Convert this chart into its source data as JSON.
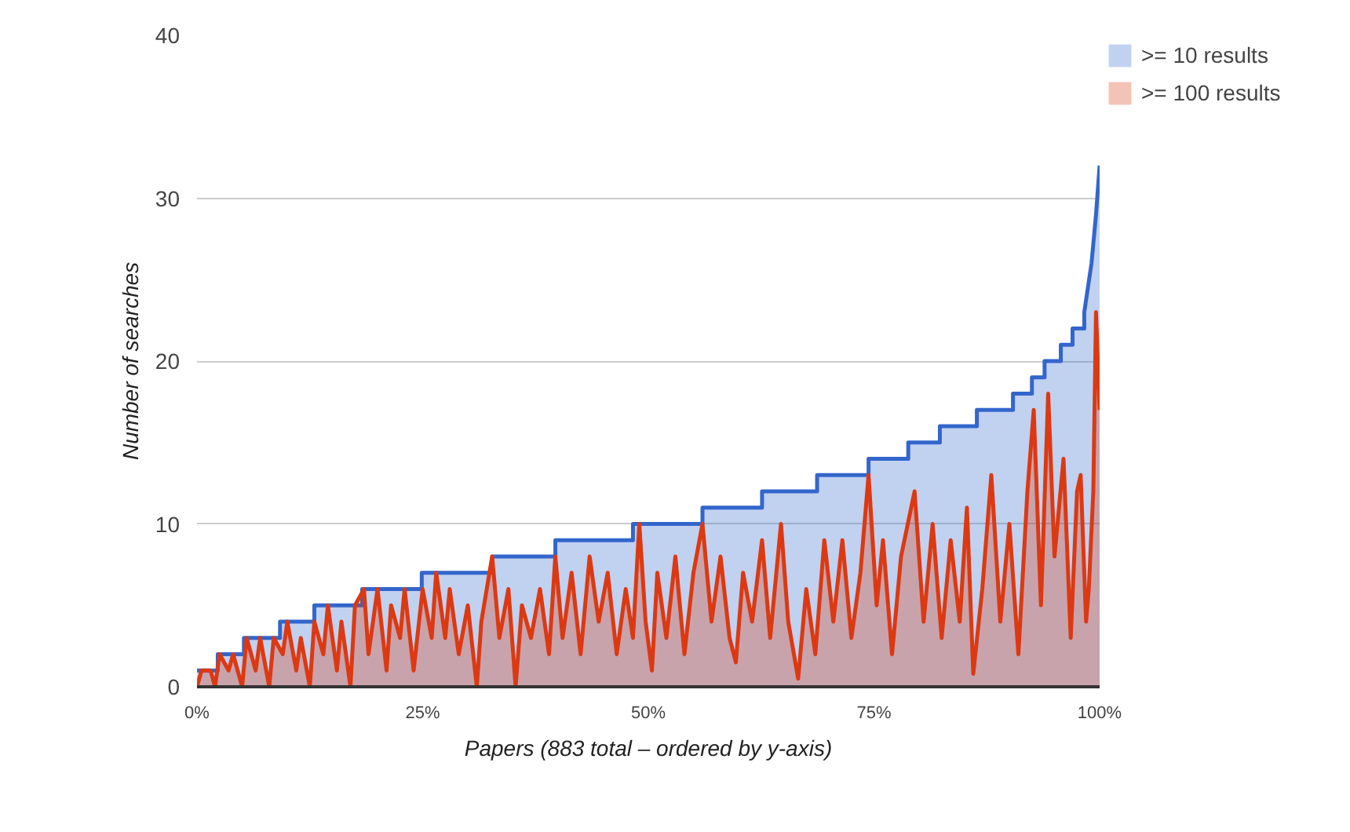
{
  "chart_data": {
    "type": "area",
    "xlabel": "Papers (883 total – ordered by y-axis)",
    "ylabel": "Number of searches",
    "xlim": [
      0,
      100
    ],
    "xticks": [
      {
        "value": 0,
        "label": "0%"
      },
      {
        "value": 25,
        "label": "25%"
      },
      {
        "value": 50,
        "label": "50%"
      },
      {
        "value": 75,
        "label": "75%"
      },
      {
        "value": 100,
        "label": "100%"
      }
    ],
    "ylim": [
      0,
      40
    ],
    "yticks": [
      0,
      10,
      20,
      30,
      40
    ],
    "grid": "y",
    "legend": "top right",
    "series": [
      {
        "name": ">= 10 results",
        "color": "#3366cc",
        "x": [
          0,
          2.3,
          2.3,
          5.2,
          5.2,
          9.2,
          9.2,
          13.0,
          13.0,
          18.3,
          18.3,
          24.9,
          24.9,
          32.7,
          32.7,
          39.7,
          39.7,
          48.3,
          48.3,
          56.0,
          56.0,
          62.6,
          62.6,
          68.7,
          68.7,
          74.4,
          74.4,
          78.8,
          78.8,
          82.3,
          82.3,
          86.4,
          86.4,
          90.4,
          90.4,
          92.5,
          92.5,
          93.9,
          93.9,
          95.7,
          95.7,
          97.0,
          97.0,
          98.3,
          98.3,
          99.1,
          99.6,
          100
        ],
        "values": [
          1,
          1,
          2,
          2,
          3,
          3,
          4,
          4,
          5,
          5,
          6,
          6,
          7,
          7,
          8,
          8,
          9,
          9,
          10,
          10,
          11,
          11,
          12,
          12,
          13,
          13,
          14,
          14,
          15,
          15,
          16,
          16,
          17,
          17,
          18,
          18,
          19,
          19,
          20,
          20,
          21,
          21,
          22,
          22,
          23,
          26,
          29,
          32
        ]
      },
      {
        "name": ">= 100 results",
        "color": "#dc3912",
        "x": [
          0,
          0.5,
          1.5,
          2,
          2.5,
          3.5,
          4,
          5,
          5.5,
          6.5,
          7,
          8,
          8.5,
          9.5,
          10,
          11,
          11.5,
          12.5,
          13,
          14,
          14.5,
          15.5,
          16,
          17,
          17.5,
          18.5,
          19,
          20,
          21,
          21.5,
          22.5,
          23,
          24,
          25,
          26,
          26.5,
          27.5,
          28,
          29,
          30,
          31,
          31.5,
          32.7,
          33.5,
          34.5,
          35.3,
          36,
          37,
          38,
          39,
          39.7,
          40.5,
          41.5,
          42.5,
          43.5,
          44.5,
          45.5,
          46.5,
          47.5,
          48.3,
          49,
          49.7,
          50.4,
          51,
          52,
          53,
          54,
          55,
          56,
          57,
          58,
          59,
          59.7,
          60.5,
          61.5,
          62.6,
          63.5,
          64.7,
          65.5,
          66.6,
          67.5,
          68.5,
          69.5,
          70.5,
          71.5,
          72.5,
          73.5,
          74.4,
          75.3,
          76,
          77,
          78,
          79.5,
          80.5,
          81.5,
          82.5,
          83.5,
          84.5,
          85.3,
          86,
          87,
          88,
          89,
          90,
          91,
          92,
          92.7,
          93.5,
          94.3,
          95,
          96,
          96.8,
          97.5,
          97.9,
          98.5,
          98.8,
          99.3,
          99.6,
          100
        ],
        "values": [
          0,
          1,
          1,
          0,
          2,
          1,
          2,
          0,
          3,
          1,
          3,
          0,
          3,
          2,
          4,
          1,
          3,
          0,
          4,
          2,
          5,
          1,
          4,
          0,
          5,
          6,
          2,
          6,
          1,
          5,
          3,
          6,
          1,
          6,
          3,
          7,
          3,
          6,
          2,
          5,
          0,
          4,
          8,
          3,
          6,
          0,
          5,
          3,
          6,
          2,
          8,
          3,
          7,
          2,
          8,
          4,
          7,
          2,
          6,
          3,
          10,
          4,
          1,
          7,
          3,
          8,
          2,
          7,
          10,
          4,
          8,
          3,
          1.5,
          7,
          4,
          9,
          3,
          10,
          4,
          0.5,
          6,
          2,
          9,
          4,
          9,
          3,
          7,
          13,
          5,
          9,
          2,
          8,
          12,
          4,
          10,
          3,
          9,
          4,
          11,
          0.8,
          6,
          13,
          4,
          10,
          2,
          12,
          17,
          5,
          18,
          8,
          14,
          3,
          12,
          13,
          4,
          6,
          12,
          23,
          17
        ]
      }
    ]
  }
}
